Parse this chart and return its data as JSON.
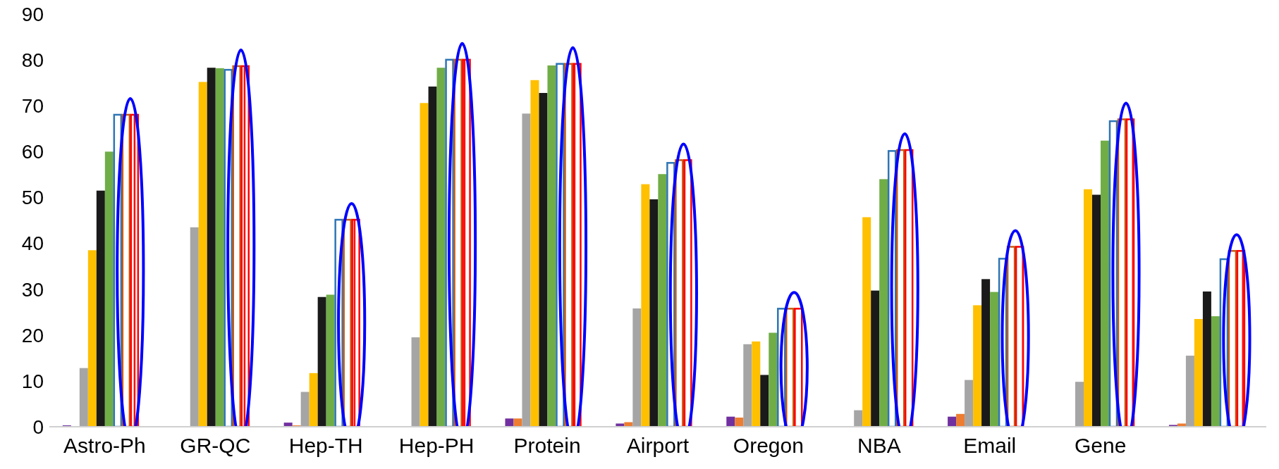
{
  "chart_data": {
    "type": "bar",
    "categories": [
      "Astro-Ph",
      "GR-QC",
      "Hep-TH",
      "Hep-PH",
      "Protein",
      "Airport",
      "Oregon",
      "NBA",
      "Email",
      "Gene",
      null
    ],
    "series": [
      {
        "color": "#7030a0",
        "values": [
          0.3,
          0,
          0.9,
          0,
          1.8,
          0.7,
          2.2,
          0,
          2.2,
          0,
          0.4
        ]
      },
      {
        "color": "#ed7d31",
        "values": [
          0,
          0,
          0.3,
          0,
          1.8,
          1.0,
          2.0,
          0,
          2.8,
          null,
          0.7
        ]
      },
      {
        "color": "#a5a5a5",
        "values": [
          12.8,
          43.5,
          7.6,
          19.5,
          68.3,
          25.8,
          18.0,
          3.6,
          10.2,
          9.8,
          15.5
        ]
      },
      {
        "color": "#ffc000",
        "values": [
          38.5,
          75.2,
          11.7,
          70.6,
          75.6,
          52.9,
          18.6,
          45.7,
          26.5,
          51.8,
          23.5
        ]
      },
      {
        "color": "#1a1a1a",
        "values": [
          51.5,
          78.3,
          28.3,
          74.2,
          72.8,
          49.6,
          11.3,
          29.7,
          32.2,
          50.6,
          29.5
        ]
      },
      {
        "color": "#70ad47",
        "values": [
          60.0,
          78.2,
          28.8,
          78.3,
          78.8,
          55.1,
          20.5,
          54.0,
          29.4,
          62.4,
          24.1
        ]
      },
      {
        "color": "#2e75b6",
        "values": [
          68.2,
          78.0,
          45.3,
          80.2,
          79.3,
          57.7,
          25.9,
          60.3,
          36.8,
          66.8,
          36.7
        ]
      },
      {
        "color": "#c55a11",
        "values": [
          68.2,
          78.8,
          45.3,
          80.2,
          79.3,
          58.3,
          25.9,
          60.5,
          39.4,
          67.2,
          38.5
        ]
      },
      {
        "color": "#ff0000",
        "values": [
          68.2,
          78.8,
          45.3,
          80.2,
          79.3,
          58.3,
          25.9,
          60.5,
          39.4,
          67.2,
          38.5
        ]
      }
    ],
    "ylim": [
      0,
      90
    ],
    "yticks": [
      0,
      10,
      20,
      30,
      40,
      50,
      60,
      70,
      80,
      90
    ],
    "grid": false,
    "legend": false
  }
}
